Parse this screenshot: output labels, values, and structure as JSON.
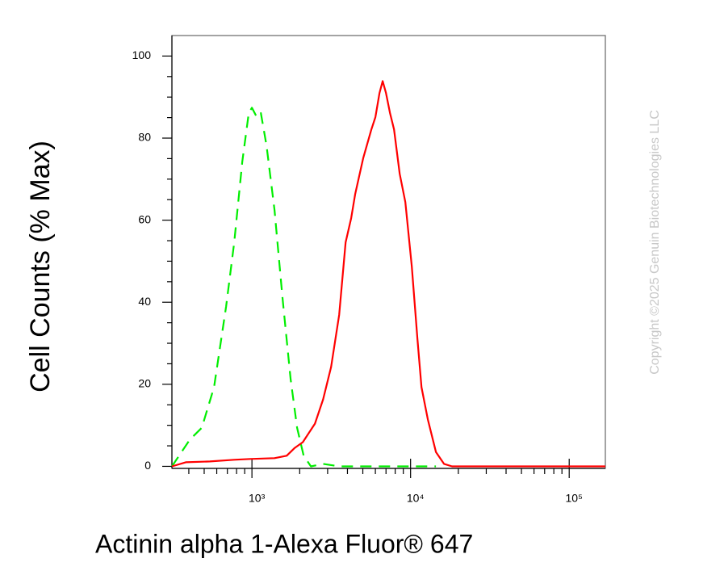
{
  "chart_data": {
    "type": "line",
    "xlabel": "Actinin alpha 1-Alexa Fluor® 647",
    "ylabel": "Cell Counts (% Max)",
    "watermark": "Copyright ©2025 Genuin Biotechnologies LLC",
    "xscale": "log",
    "xlim": [
      313,
      169000
    ],
    "ylim": [
      -0.5,
      105
    ],
    "xticks": [
      {
        "value": 1000,
        "label": "10³"
      },
      {
        "value": 10000,
        "label": "10⁴"
      },
      {
        "value": 100000,
        "label": "10⁵"
      }
    ],
    "xminorticks": [
      400,
      500,
      600,
      700,
      800,
      900,
      2000,
      3000,
      4000,
      5000,
      6000,
      7000,
      8000,
      9000,
      20000,
      30000,
      40000,
      50000,
      60000,
      70000,
      80000,
      90000
    ],
    "yticks": [
      0,
      20,
      40,
      60,
      80,
      100
    ],
    "yminorticks": [
      5,
      10,
      15,
      25,
      30,
      35,
      45,
      50,
      55,
      65,
      70,
      75,
      85,
      90,
      95
    ],
    "series": [
      {
        "color": "#00ee00",
        "dash": true,
        "x": [
          313,
          406,
          483,
          577,
          687,
          773,
          869,
          955,
          1000,
          1073,
          1138,
          1236,
          1388,
          1560,
          1754,
          1926,
          2118,
          2354,
          2808,
          3548,
          7161,
          14450
        ],
        "values": [
          0,
          6.5,
          9.4,
          19.3,
          38.9,
          54.6,
          74.3,
          86.1,
          87.4,
          85.1,
          86.1,
          78.2,
          62.5,
          40.9,
          21.2,
          9.4,
          2.6,
          0,
          0.6,
          0,
          0,
          0
        ]
      },
      {
        "color": "#ff0000",
        "dash": false,
        "x": [
          313,
          383,
          543,
          773,
          977,
          1388,
          1656,
          1862,
          2094,
          2495,
          2808,
          3155,
          3548,
          3893,
          4224,
          4478,
          5035,
          5661,
          6005,
          6368,
          6668,
          6995,
          7417,
          7863,
          8535,
          9268,
          10180,
          11050,
          11710,
          12860,
          14450,
          16250,
          18270,
          169000
        ],
        "values": [
          0,
          1.0,
          1.2,
          1.6,
          1.8,
          2.0,
          2.6,
          4.5,
          5.9,
          10.4,
          16.3,
          24.2,
          36.9,
          54.6,
          60.5,
          66.4,
          75.2,
          82.1,
          85.1,
          91.0,
          93.9,
          91.0,
          86.1,
          82.1,
          71.3,
          64.4,
          48.7,
          31.0,
          19.3,
          11.4,
          3.5,
          0.6,
          0,
          0
        ]
      }
    ]
  }
}
